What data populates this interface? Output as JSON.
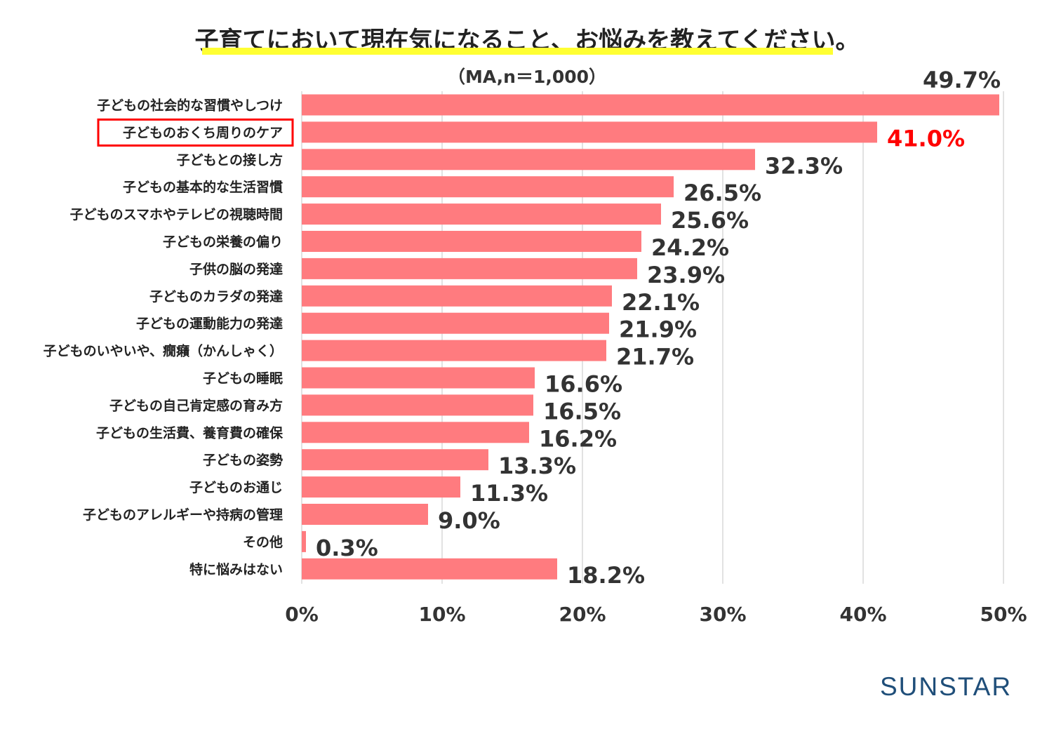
{
  "title": "子育てにおいて現在気になること、お悩みを教えてください。",
  "subtitle": "（MA,n＝1,000）",
  "brand": "SUNSTAR",
  "colors": {
    "bar": "#ff7b7f",
    "highlight": "#ff0000",
    "grid": "#d9d9d9",
    "text": "#333333"
  },
  "chart_data": {
    "type": "bar",
    "orientation": "horizontal",
    "categories": [
      "子どもの社会的な習慣やしつけ",
      "子どものおくち周りのケア",
      "子どもとの接し方",
      "子どもの基本的な生活習慣",
      "子どものスマホやテレビの視聴時間",
      "子どもの栄養の偏り",
      "子供の脳の発達",
      "子どものカラダの発達",
      "子どもの運動能力の発達",
      "子どものいやいや、癇癪（かんしゃく）",
      "子どもの睡眠",
      "子どもの自己肯定感の育み方",
      "子どもの生活費、養育費の確保",
      "子どもの姿勢",
      "子どものお通じ",
      "子どものアレルギーや持病の管理",
      "その他",
      "特に悩みはない"
    ],
    "values": [
      49.7,
      41.0,
      32.3,
      26.5,
      25.6,
      24.2,
      23.9,
      22.1,
      21.9,
      21.7,
      16.6,
      16.5,
      16.2,
      13.3,
      11.3,
      9.0,
      0.3,
      18.2
    ],
    "value_labels": [
      "49.7%",
      "41.0%",
      "32.3%",
      "26.5%",
      "25.6%",
      "24.2%",
      "23.9%",
      "22.1%",
      "21.9%",
      "21.7%",
      "16.6%",
      "16.5%",
      "16.2%",
      "13.3%",
      "11.3%",
      "9.0%",
      "0.3%",
      "18.2%"
    ],
    "highlight_index": 1,
    "xlim": [
      0,
      50
    ],
    "xticks": [
      "0%",
      "10%",
      "20%",
      "30%",
      "40%",
      "50%"
    ],
    "grid": true,
    "title": "子育てにおいて現在気になること、お悩みを教えてください。",
    "xlabel": "",
    "ylabel": ""
  }
}
